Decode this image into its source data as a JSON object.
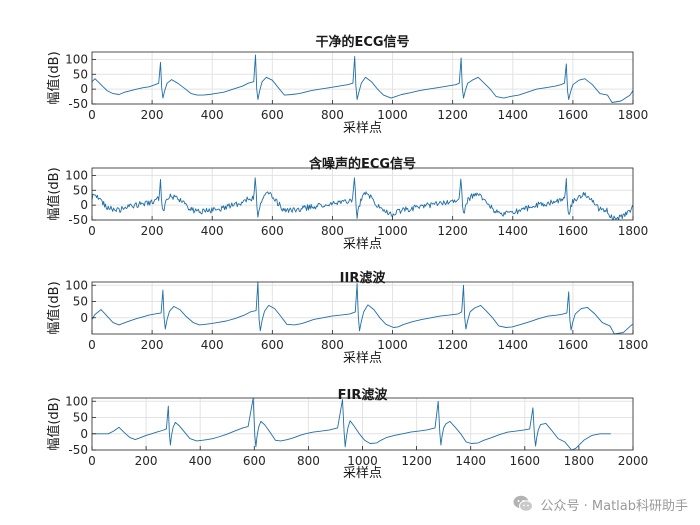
{
  "chart_data": [
    {
      "type": "line",
      "title": "干净的ECG信号",
      "xlabel": "采样点",
      "ylabel": "幅值(dB)",
      "xlim": [
        0,
        1800
      ],
      "ylim": [
        -50,
        125
      ],
      "xticks": [
        0,
        200,
        400,
        600,
        800,
        1000,
        1200,
        1400,
        1600,
        1800
      ],
      "yticks": [
        -50,
        0,
        50,
        100
      ],
      "grid": true,
      "color": "#1f6fa8",
      "series": [
        {
          "x": [
            0,
            10,
            30,
            50,
            70,
            90,
            110,
            130,
            150,
            170,
            190,
            210,
            222,
            228,
            232,
            236,
            242,
            250,
            265,
            285,
            305,
            330,
            350,
            370,
            390,
            410,
            440,
            470,
            500,
            520,
            538,
            544,
            548,
            552,
            558,
            566,
            580,
            600,
            620,
            640,
            665,
            690,
            710,
            730,
            760,
            790,
            820,
            850,
            868,
            874,
            878,
            882,
            888,
            896,
            910,
            930,
            950,
            970,
            995,
            1010,
            1030,
            1060,
            1090,
            1120,
            1150,
            1180,
            1210,
            1222,
            1228,
            1232,
            1236,
            1242,
            1250,
            1265,
            1285,
            1305,
            1325,
            1345,
            1370,
            1390,
            1420,
            1450,
            1480,
            1510,
            1540,
            1560,
            1572,
            1578,
            1582,
            1586,
            1592,
            1600,
            1620,
            1640,
            1665,
            1690,
            1715,
            1730,
            1760,
            1790,
            1800
          ],
          "y": [
            25,
            35,
            15,
            -5,
            -15,
            -18,
            -10,
            -5,
            0,
            5,
            8,
            15,
            20,
            90,
            5,
            -30,
            -5,
            20,
            32,
            20,
            5,
            -15,
            -20,
            -20,
            -18,
            -15,
            -10,
            0,
            10,
            20,
            25,
            115,
            0,
            -35,
            -5,
            25,
            40,
            30,
            5,
            -20,
            -18,
            -15,
            -10,
            -5,
            0,
            5,
            10,
            15,
            20,
            110,
            10,
            -35,
            -10,
            20,
            40,
            25,
            0,
            -20,
            -30,
            -25,
            -18,
            -12,
            -5,
            0,
            5,
            10,
            15,
            20,
            105,
            5,
            -30,
            -5,
            20,
            30,
            40,
            20,
            0,
            -25,
            -30,
            -25,
            -20,
            -10,
            0,
            5,
            10,
            15,
            20,
            85,
            -5,
            -35,
            -10,
            15,
            30,
            35,
            15,
            -15,
            -20,
            -45,
            -40,
            -20,
            -5
          ]
        }
      ]
    },
    {
      "type": "line",
      "title": "含噪声的ECG信号",
      "xlabel": "采样点",
      "ylabel": "幅值(dB)",
      "xlim": [
        0,
        1800
      ],
      "ylim": [
        -50,
        125
      ],
      "xticks": [
        0,
        200,
        400,
        600,
        800,
        1000,
        1200,
        1400,
        1600,
        1800
      ],
      "yticks": [
        -50,
        0,
        50,
        100
      ],
      "grid": true,
      "color": "#1f6fa8",
      "noise": 10,
      "series": [
        {
          "x": [
            0,
            10,
            30,
            50,
            70,
            90,
            110,
            130,
            150,
            170,
            190,
            210,
            222,
            228,
            232,
            236,
            242,
            250,
            265,
            285,
            305,
            330,
            350,
            370,
            390,
            410,
            440,
            470,
            500,
            520,
            538,
            544,
            548,
            552,
            558,
            566,
            580,
            600,
            620,
            640,
            665,
            690,
            710,
            730,
            760,
            790,
            820,
            850,
            868,
            874,
            878,
            882,
            888,
            896,
            910,
            930,
            950,
            970,
            995,
            1010,
            1030,
            1060,
            1090,
            1120,
            1150,
            1180,
            1210,
            1222,
            1228,
            1232,
            1236,
            1242,
            1250,
            1265,
            1285,
            1305,
            1325,
            1345,
            1370,
            1390,
            1420,
            1450,
            1480,
            1510,
            1540,
            1560,
            1572,
            1578,
            1582,
            1586,
            1592,
            1600,
            1620,
            1640,
            1665,
            1690,
            1715,
            1730,
            1760,
            1790,
            1800
          ],
          "y": [
            25,
            35,
            15,
            -5,
            -15,
            -18,
            -10,
            -5,
            0,
            5,
            8,
            15,
            20,
            90,
            5,
            -30,
            -5,
            20,
            32,
            20,
            5,
            -15,
            -20,
            -20,
            -18,
            -15,
            -10,
            0,
            10,
            20,
            25,
            115,
            0,
            -35,
            -5,
            25,
            40,
            30,
            5,
            -20,
            -18,
            -15,
            -10,
            -5,
            0,
            5,
            10,
            15,
            20,
            110,
            10,
            -35,
            -10,
            20,
            40,
            25,
            0,
            -20,
            -30,
            -25,
            -18,
            -12,
            -5,
            0,
            5,
            10,
            15,
            20,
            105,
            5,
            -30,
            -5,
            20,
            30,
            40,
            20,
            0,
            -25,
            -30,
            -25,
            -20,
            -10,
            0,
            5,
            10,
            15,
            20,
            85,
            -5,
            -35,
            -10,
            15,
            30,
            35,
            15,
            -15,
            -20,
            -45,
            -40,
            -20,
            -5
          ]
        }
      ]
    },
    {
      "type": "line",
      "title": "IIR滤波",
      "xlabel": "采样点",
      "ylabel": "幅值(dB)",
      "xlim": [
        0,
        1800
      ],
      "ylim": [
        -50,
        110
      ],
      "xticks": [
        0,
        200,
        400,
        600,
        800,
        1000,
        1200,
        1400,
        1600,
        1800
      ],
      "yticks": [
        0,
        50,
        100
      ],
      "grid": true,
      "color": "#1f6fa8",
      "series": [
        {
          "x": [
            0,
            10,
            30,
            50,
            70,
            90,
            110,
            130,
            150,
            170,
            190,
            210,
            230,
            236,
            240,
            244,
            250,
            258,
            272,
            292,
            312,
            337,
            357,
            377,
            397,
            417,
            447,
            477,
            507,
            527,
            546,
            552,
            556,
            560,
            566,
            574,
            588,
            608,
            628,
            648,
            673,
            698,
            718,
            738,
            768,
            798,
            828,
            858,
            876,
            882,
            886,
            890,
            896,
            904,
            918,
            938,
            958,
            978,
            1003,
            1018,
            1038,
            1068,
            1098,
            1128,
            1158,
            1188,
            1218,
            1230,
            1236,
            1240,
            1244,
            1250,
            1258,
            1273,
            1293,
            1313,
            1333,
            1353,
            1378,
            1398,
            1428,
            1458,
            1488,
            1518,
            1548,
            1568,
            1580,
            1586,
            1590,
            1594,
            1600,
            1608,
            1628,
            1648,
            1673,
            1698,
            1723,
            1738,
            1768,
            1798
          ],
          "y": [
            -5,
            10,
            25,
            5,
            -15,
            -22,
            -15,
            -8,
            -2,
            3,
            8,
            12,
            15,
            85,
            0,
            -35,
            -5,
            20,
            35,
            25,
            5,
            -15,
            -22,
            -20,
            -18,
            -15,
            -10,
            -2,
            8,
            18,
            22,
            110,
            -5,
            -40,
            -8,
            20,
            38,
            28,
            5,
            -20,
            -22,
            -18,
            -12,
            -5,
            0,
            5,
            8,
            12,
            18,
            105,
            5,
            -40,
            -12,
            18,
            40,
            25,
            0,
            -20,
            -30,
            -28,
            -20,
            -12,
            -5,
            0,
            5,
            8,
            12,
            18,
            100,
            0,
            -35,
            -8,
            18,
            30,
            38,
            20,
            0,
            -25,
            -30,
            -28,
            -20,
            -12,
            -2,
            5,
            8,
            12,
            15,
            80,
            -8,
            -38,
            -12,
            12,
            28,
            32,
            12,
            -15,
            -25,
            -50,
            -45,
            -20
          ]
        }
      ]
    },
    {
      "type": "line",
      "title": "FIR滤波",
      "xlabel": "采样点",
      "ylabel": "幅值(dB)",
      "xlim": [
        0,
        2000
      ],
      "ylim": [
        -50,
        110
      ],
      "xticks": [
        0,
        200,
        400,
        600,
        800,
        1000,
        1200,
        1400,
        1600,
        1800,
        2000
      ],
      "yticks": [
        -50,
        0,
        50,
        100
      ],
      "grid": true,
      "color": "#1f6fa8",
      "series": [
        {
          "x": [
            0,
            60,
            80,
            100,
            120,
            140,
            160,
            180,
            200,
            220,
            240,
            260,
            275,
            282,
            286,
            290,
            294,
            300,
            308,
            322,
            342,
            362,
            387,
            407,
            427,
            447,
            467,
            497,
            527,
            557,
            577,
            596,
            602,
            606,
            610,
            616,
            624,
            638,
            658,
            678,
            698,
            723,
            748,
            768,
            788,
            818,
            848,
            878,
            908,
            926,
            932,
            936,
            940,
            946,
            954,
            968,
            988,
            1008,
            1028,
            1053,
            1068,
            1088,
            1118,
            1148,
            1178,
            1208,
            1238,
            1268,
            1280,
            1286,
            1290,
            1294,
            1300,
            1308,
            1323,
            1343,
            1363,
            1383,
            1403,
            1428,
            1448,
            1478,
            1508,
            1538,
            1568,
            1598,
            1618,
            1630,
            1636,
            1640,
            1644,
            1650,
            1658,
            1678,
            1698,
            1723,
            1748,
            1773,
            1788,
            1818,
            1848,
            1878,
            1918
          ],
          "y": [
            0,
            0,
            8,
            20,
            3,
            -12,
            -18,
            -12,
            -5,
            0,
            5,
            10,
            15,
            85,
            0,
            -35,
            -5,
            20,
            35,
            25,
            5,
            -15,
            -22,
            -20,
            -18,
            -15,
            -10,
            -2,
            8,
            18,
            22,
            110,
            -5,
            -40,
            -8,
            20,
            38,
            28,
            5,
            -20,
            -22,
            -18,
            -12,
            -5,
            0,
            5,
            8,
            12,
            18,
            105,
            5,
            -40,
            -12,
            18,
            40,
            25,
            0,
            -20,
            -30,
            -28,
            -20,
            -12,
            -5,
            0,
            5,
            8,
            12,
            18,
            100,
            0,
            -35,
            -8,
            18,
            30,
            38,
            20,
            0,
            -25,
            -30,
            -28,
            -20,
            -12,
            -2,
            5,
            8,
            12,
            15,
            80,
            -8,
            -38,
            -12,
            12,
            28,
            32,
            12,
            -15,
            -25,
            -50,
            -45,
            -20,
            -5,
            0,
            0
          ]
        }
      ]
    }
  ],
  "watermark": {
    "text": "公众号 · Matlab科研助手",
    "icon": "wechat-icon"
  }
}
